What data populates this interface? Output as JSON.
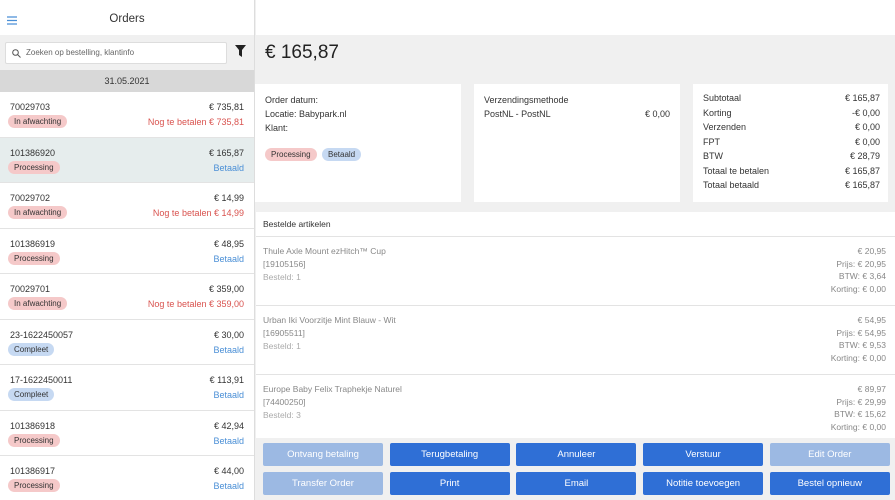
{
  "sidebar": {
    "title": "Orders",
    "search_placeholder": "Zoeken op bestelling, klantinfo",
    "date": "31.05.2021",
    "selected_order": 1,
    "orders": [
      {
        "id": "70029703",
        "amount": "€ 735,81",
        "status": {
          "label": "In afwachting",
          "color": "#f5c9c9"
        },
        "payment": {
          "label": "Nog te betalen € 735,81",
          "color": "#d9534f"
        }
      },
      {
        "id": "101386920",
        "amount": "€ 165,87",
        "status": {
          "label": "Processing",
          "color": "#f5c9c9"
        },
        "payment": {
          "label": "Betaald",
          "color": "#4a8fd6"
        }
      },
      {
        "id": "70029702",
        "amount": "€ 14,99",
        "status": {
          "label": "In afwachting",
          "color": "#f5c9c9"
        },
        "payment": {
          "label": "Nog te betalen € 14,99",
          "color": "#d9534f"
        }
      },
      {
        "id": "101386919",
        "amount": "€ 48,95",
        "status": {
          "label": "Processing",
          "color": "#f5c9c9"
        },
        "payment": {
          "label": "Betaald",
          "color": "#4a8fd6"
        }
      },
      {
        "id": "70029701",
        "amount": "€ 359,00",
        "status": {
          "label": "In afwachting",
          "color": "#f5c9c9"
        },
        "payment": {
          "label": "Nog te betalen € 359,00",
          "color": "#d9534f"
        }
      },
      {
        "id": "23-1622450057",
        "amount": "€ 30,00",
        "status": {
          "label": "Compleet",
          "color": "#c6d9f2"
        },
        "payment": {
          "label": "Betaald",
          "color": "#4a8fd6"
        }
      },
      {
        "id": "17-1622450011",
        "amount": "€ 113,91",
        "status": {
          "label": "Compleet",
          "color": "#c6d9f2"
        },
        "payment": {
          "label": "Betaald",
          "color": "#4a8fd6"
        }
      },
      {
        "id": "101386918",
        "amount": "€ 42,94",
        "status": {
          "label": "Processing",
          "color": "#f5c9c9"
        },
        "payment": {
          "label": "Betaald",
          "color": "#4a8fd6"
        }
      },
      {
        "id": "101386917",
        "amount": "€ 44,00",
        "status": {
          "label": "Processing",
          "color": "#f5c9c9"
        },
        "payment": {
          "label": "Betaald",
          "color": "#4a8fd6"
        }
      }
    ]
  },
  "main": {
    "total": "€ 165,87",
    "order_info": {
      "lines": [
        "Order datum:",
        "Locatie: Babypark.nl",
        "Klant:"
      ],
      "badges": [
        {
          "label": "Processing",
          "color": "#f5c9c9"
        },
        {
          "label": "Betaald",
          "color": "#c6d9f2"
        }
      ]
    },
    "shipping": {
      "title": "Verzendingsmethode",
      "method": "PostNL - PostNL",
      "price": "€ 0,00"
    },
    "summary": [
      [
        "Subtotaal",
        "€ 165,87"
      ],
      [
        "Korting",
        "-€ 0,00"
      ],
      [
        "Verzenden",
        "€ 0,00"
      ],
      [
        "FPT",
        "€ 0,00"
      ],
      [
        "BTW",
        "€ 28,79"
      ],
      [
        "Totaal te betalen",
        "€ 165,87"
      ],
      [
        "Totaal betaald",
        "€ 165,87"
      ]
    ],
    "items_title": "Bestelde artikelen",
    "items": [
      {
        "name": "Thule Axle Mount ezHitch™ Cup",
        "sku": "[19105156]",
        "ordered": "Besteld: 1",
        "total": "€ 20,95",
        "price": "Prijs: € 20,95",
        "tax": "BTW: € 3,64",
        "discount": "Korting: € 0,00"
      },
      {
        "name": "Urban Iki Voorzitje Mint Blauw - Wit",
        "sku": "[16905511]",
        "ordered": "Besteld: 1",
        "total": "€ 54,95",
        "price": "Prijs: € 54,95",
        "tax": "BTW: € 9,53",
        "discount": "Korting: € 0,00"
      },
      {
        "name": "Europe Baby Felix Traphekje Naturel",
        "sku": "[74400250]",
        "ordered": "Besteld: 3",
        "total": "€ 89,97",
        "price": "Prijs: € 29,99",
        "tax": "BTW: € 15,62",
        "discount": "Korting: € 0,00"
      }
    ],
    "buttons": [
      [
        {
          "label": "Ontvang betaling",
          "enabled": false
        },
        {
          "label": "Terugbetaling",
          "enabled": true
        },
        {
          "label": "Annuleer",
          "enabled": true
        },
        {
          "label": "Verstuur",
          "enabled": true
        },
        {
          "label": "Edit Order",
          "enabled": false
        }
      ],
      [
        {
          "label": "Transfer Order",
          "enabled": false
        },
        {
          "label": "Print",
          "enabled": true
        },
        {
          "label": "Email",
          "enabled": true
        },
        {
          "label": "Notitie toevoegen",
          "enabled": true
        },
        {
          "label": "Bestel opnieuw",
          "enabled": true
        }
      ]
    ]
  }
}
